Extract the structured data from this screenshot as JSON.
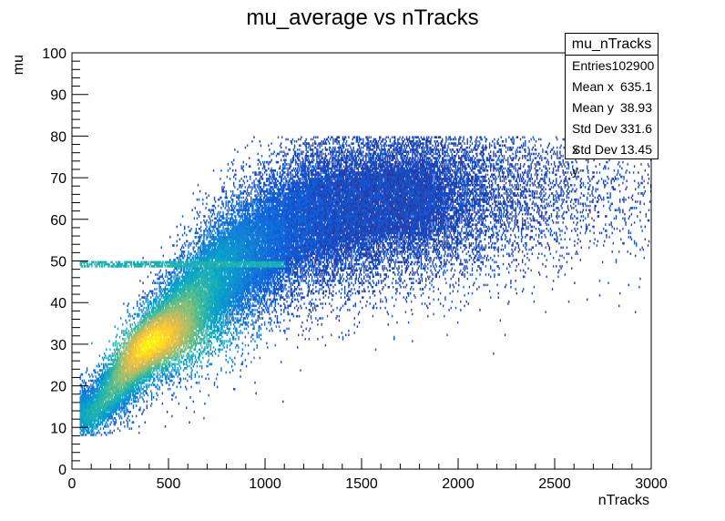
{
  "chart_data": {
    "type": "heatmap",
    "title": "mu_average vs nTracks",
    "xlabel": "nTracks",
    "ylabel": "mu",
    "xlim": [
      0,
      3000
    ],
    "ylim": [
      0,
      100
    ],
    "x_ticks": [
      0,
      500,
      1000,
      1500,
      2000,
      2500,
      3000
    ],
    "y_ticks": [
      0,
      10,
      20,
      30,
      40,
      50,
      60,
      70,
      80,
      90,
      100
    ],
    "grid": false,
    "colormap": [
      "#352a87",
      "#0f5cdd",
      "#1481d6",
      "#06a4ca",
      "#2eb7a4",
      "#87bf77",
      "#d1bb59",
      "#fec832",
      "#f9fb0e"
    ],
    "density_model": {
      "ridge_center": [
        [
          100,
          13
        ],
        [
          400,
          30
        ],
        [
          800,
          48
        ],
        [
          1200,
          60
        ],
        [
          1600,
          64
        ],
        [
          2200,
          66
        ],
        [
          2800,
          67
        ]
      ],
      "ridge_sigma": [
        [
          100,
          4
        ],
        [
          400,
          6
        ],
        [
          800,
          9
        ],
        [
          1200,
          10
        ],
        [
          2000,
          10
        ],
        [
          3000,
          10
        ]
      ],
      "peak": {
        "x": 410,
        "y": 30
      },
      "mu_max": 80,
      "mu_min": 8,
      "enhanced_band_mu": 49
    },
    "stats": {
      "name": "mu_nTracks",
      "rows": [
        {
          "label": "Entries",
          "value": "102900"
        },
        {
          "label": "Mean x",
          "value": "635.1"
        },
        {
          "label": "Mean y",
          "value": "38.93"
        },
        {
          "label": "Std Dev x",
          "value": "331.6"
        },
        {
          "label": "Std Dev y",
          "value": "13.45"
        }
      ]
    }
  }
}
